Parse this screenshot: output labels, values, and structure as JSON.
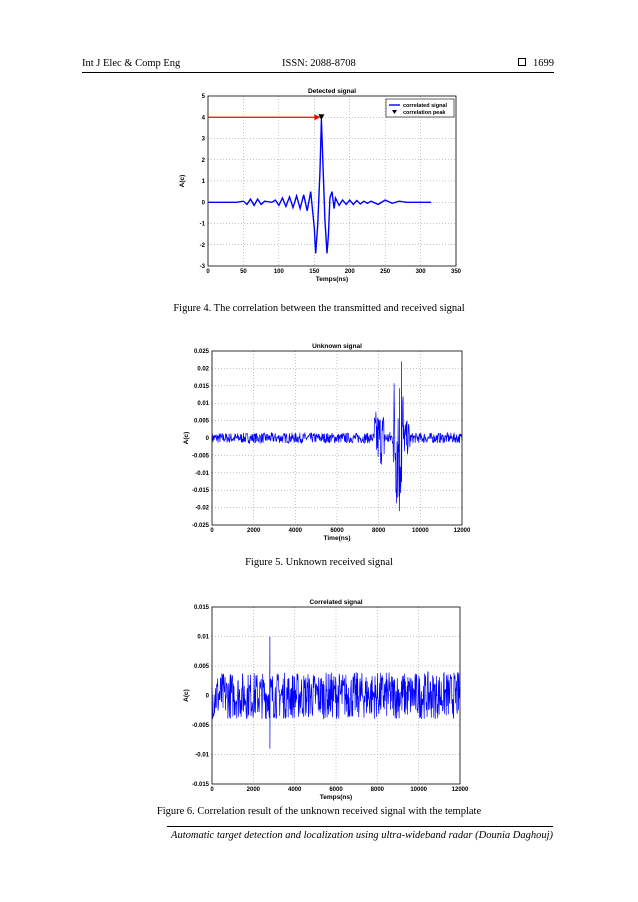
{
  "header": {
    "journal": "Int J Elec & Comp Eng",
    "issn": "ISSN: 2088-8708",
    "page": "1699"
  },
  "figures": [
    {
      "caption": "Figure 4. The correlation between the transmitted and received signal"
    },
    {
      "caption": "Figure 5. Unknown received signal"
    },
    {
      "caption": "Figure 6. Correlation result of the unknown received signal with the template"
    }
  ],
  "footer": "Automatic target detection and localization using ultra-wideband radar (Dounia Daghouj)",
  "colors": {
    "signal": "#0000ff",
    "arrow": "#ff0000",
    "grid": "#888888"
  },
  "chart_data": [
    {
      "type": "line",
      "title": "Detected signal",
      "xlabel": "Temps(ns)",
      "ylabel": "A(c)",
      "xlim": [
        0,
        350
      ],
      "ylim": [
        -3,
        5
      ],
      "xticks": [
        "0",
        "50",
        "100",
        "150",
        "200",
        "250",
        "300",
        "350"
      ],
      "yticks": [
        "-3",
        "-2",
        "-1",
        "0",
        "1",
        "2",
        "3",
        "4",
        "5"
      ],
      "grid": true,
      "legend": [
        "correlated signal",
        "correlation peak"
      ],
      "legend_position": "top-right",
      "series": [
        {
          "name": "correlated signal",
          "x": [
            0,
            40,
            50,
            55,
            60,
            65,
            70,
            75,
            80,
            90,
            95,
            100,
            105,
            110,
            115,
            120,
            125,
            130,
            135,
            140,
            145,
            150,
            152,
            155,
            158,
            160,
            162,
            165,
            168,
            170,
            172,
            175,
            178,
            180,
            185,
            190,
            195,
            200,
            205,
            210,
            215,
            220,
            225,
            230,
            240,
            250,
            260,
            270,
            280,
            300,
            315
          ],
          "y": [
            0,
            0,
            0.05,
            -0.1,
            0.15,
            -0.15,
            0.15,
            -0.1,
            0.05,
            0,
            0.1,
            -0.15,
            0.2,
            -0.2,
            0.25,
            -0.25,
            0.3,
            -0.3,
            0.35,
            -0.4,
            0.5,
            -1.2,
            -2.4,
            -1.0,
            1.5,
            3.9,
            2.0,
            -0.8,
            -2.4,
            -1.5,
            0.2,
            0.5,
            -0.3,
            0.2,
            -0.15,
            0.1,
            -0.1,
            0.1,
            -0.1,
            0.08,
            -0.08,
            0.05,
            -0.05,
            0.05,
            -0.1,
            0.1,
            -0.05,
            0.05,
            0,
            0,
            0
          ]
        }
      ],
      "peak": {
        "x": 160,
        "y": 4,
        "label": "correlation peak"
      },
      "arrow": {
        "from": [
          0,
          4
        ],
        "to": [
          160,
          4
        ]
      }
    },
    {
      "type": "line",
      "title": "Unknown signal",
      "xlabel": "Time(ns)",
      "ylabel": "A(c)",
      "xlim": [
        0,
        12000
      ],
      "ylim": [
        -0.025,
        0.025
      ],
      "xticks": [
        "0",
        "2000",
        "4000",
        "6000",
        "8000",
        "10000",
        "12000"
      ],
      "yticks": [
        "-0.025",
        "-0.02",
        "-0.015",
        "-0.01",
        "-0.005",
        "0",
        "0.005",
        "0.01",
        "0.015",
        "0.02",
        "0.025"
      ],
      "grid": true,
      "series": [
        {
          "name": "Unknown signal",
          "segments": [
            {
              "x": [
                0,
                7800
              ],
              "amplitude": 0.0015
            },
            {
              "x": [
                7800,
                8300
              ],
              "amplitude": 0.008
            },
            {
              "x": [
                8300,
                8700
              ],
              "amplitude": 0.002
            },
            {
              "x": [
                8700,
                9200
              ],
              "amplitude": 0.021
            },
            {
              "x": [
                9200,
                9500
              ],
              "amplitude": 0.005
            },
            {
              "x": [
                9500,
                12000
              ],
              "amplitude": 0.0015
            }
          ],
          "extremes": {
            "max": 0.022,
            "max_x": 9100,
            "min": -0.021,
            "min_x": 9000
          }
        }
      ]
    },
    {
      "type": "line",
      "title": "Correlated signal",
      "xlabel": "Temps(ns)",
      "ylabel": "A(c)",
      "xlim": [
        0,
        12000
      ],
      "ylim": [
        -0.015,
        0.015
      ],
      "xticks": [
        "0",
        "2000",
        "4000",
        "6000",
        "8000",
        "10000",
        "12000"
      ],
      "yticks": [
        "-0.015",
        "-0.01",
        "-0.005",
        "0",
        "0.005",
        "0.01",
        "0.015"
      ],
      "grid": true,
      "series": [
        {
          "name": "Correlated signal",
          "segments": [
            {
              "x": [
                0,
                12000
              ],
              "amplitude": 0.004
            }
          ],
          "extremes": {
            "max": 0.01,
            "max_x": 2800,
            "min": -0.009,
            "min_x": 2800
          }
        }
      ]
    }
  ],
  "footer_page": ""
}
